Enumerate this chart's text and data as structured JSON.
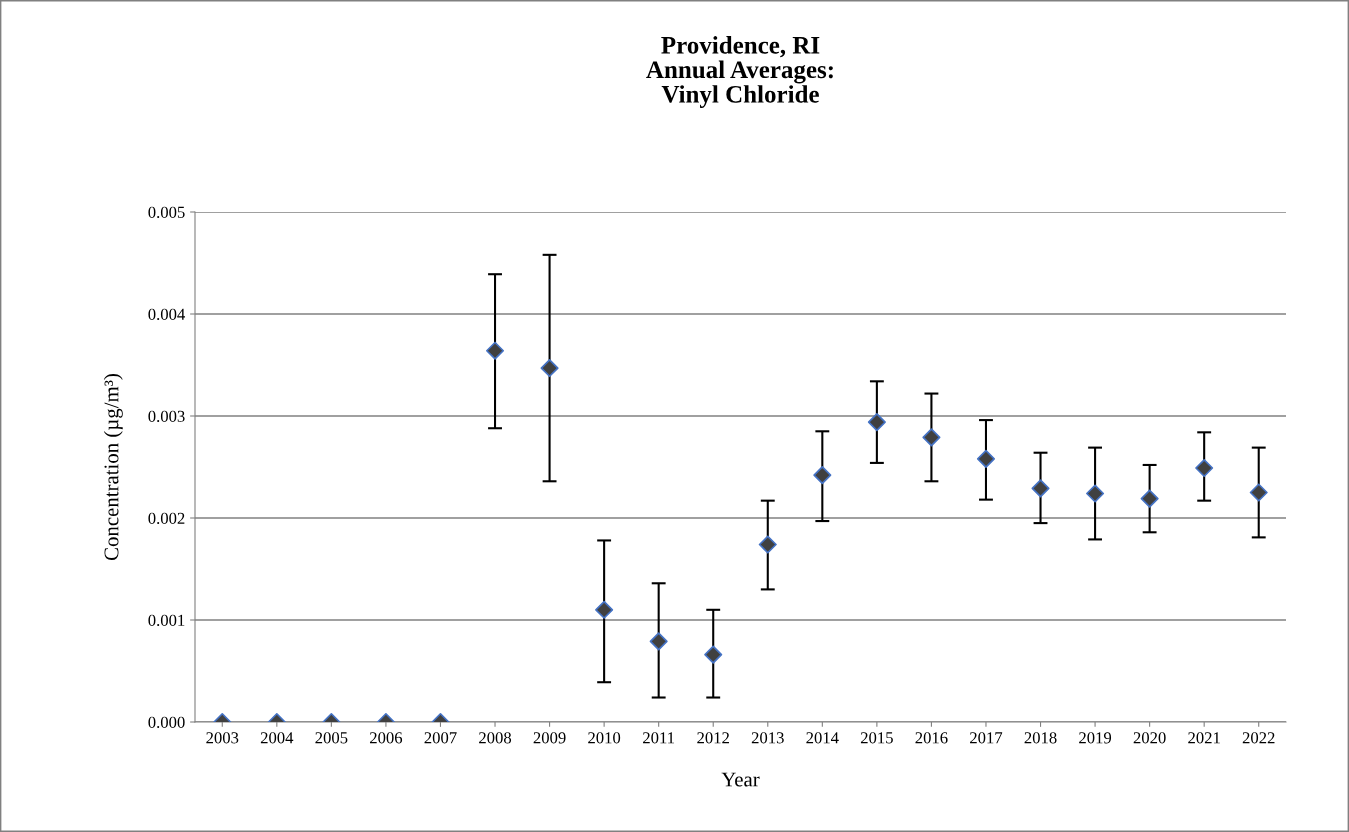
{
  "chart_data": {
    "type": "scatter",
    "title": "Providence, RI\nAnnual Averages:\nVinyl Chloride",
    "xlabel": "Year",
    "ylabel": "Concentration (µg/m³)",
    "categories": [
      "2003",
      "2004",
      "2005",
      "2006",
      "2007",
      "2008",
      "2009",
      "2010",
      "2011",
      "2012",
      "2013",
      "2014",
      "2015",
      "2016",
      "2017",
      "2018",
      "2019",
      "2020",
      "2021",
      "2022"
    ],
    "series": [
      {
        "color": "#404040",
        "values": [
          0,
          0,
          0,
          0,
          0,
          0.00364,
          0.00347,
          0.0011,
          0.00079,
          0.00066,
          0.00174,
          0.00242,
          0.00294,
          0.00279,
          0.00258,
          0.00229,
          0.00224,
          0.00219,
          0.00249,
          0.00225
        ],
        "errors": [
          null,
          null,
          null,
          null,
          null,
          [
            0.00288,
            0.00439
          ],
          [
            0.00236,
            0.00458
          ],
          [
            0.00039,
            0.00178
          ],
          [
            0.00024,
            0.00136
          ],
          [
            0.00024,
            0.0011
          ],
          [
            0.0013,
            0.00217
          ],
          [
            0.00197,
            0.00285
          ],
          [
            0.00254,
            0.00334
          ],
          [
            0.00236,
            0.00322
          ],
          [
            0.00218,
            0.00296
          ],
          [
            0.00195,
            0.00264
          ],
          [
            0.00179,
            0.00269
          ],
          [
            0.00186,
            0.00252
          ],
          [
            0.00217,
            0.00284
          ],
          [
            0.00181,
            0.00269
          ]
        ]
      }
    ],
    "ylim": [
      0,
      0.005
    ],
    "yticks": [
      {
        "value": 0,
        "label": "0.000"
      },
      {
        "value": 0.001,
        "label": "0.001"
      },
      {
        "value": 0.002,
        "label": "0.002"
      },
      {
        "value": 0.003,
        "label": "0.003"
      },
      {
        "value": 0.004,
        "label": "0.004"
      },
      {
        "value": 0.005,
        "label": "0.005"
      }
    ],
    "grid": "y",
    "marker": "diamond"
  }
}
